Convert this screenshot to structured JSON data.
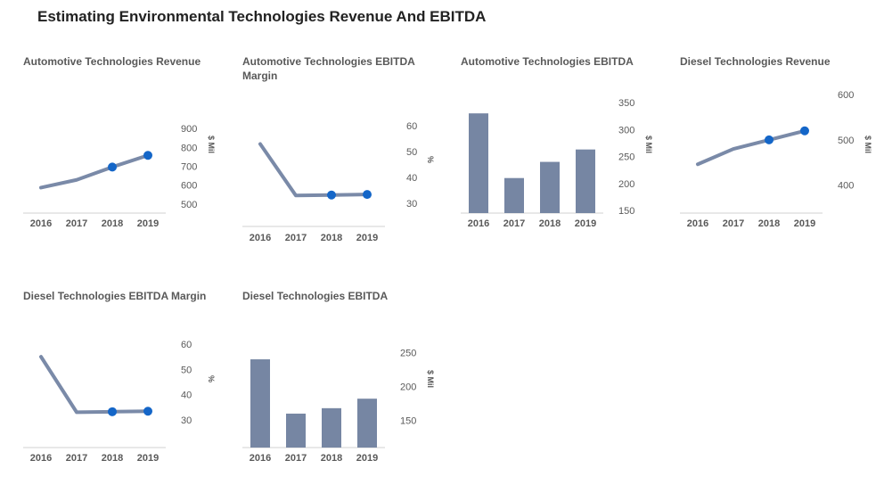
{
  "title": "Estimating Environmental Technologies Revenue And EBITDA",
  "colors": {
    "line": "#7a8aa8",
    "bar": "#7686a3",
    "point": "#1466c8",
    "axis": "#d0d0d0",
    "text": "#595959"
  },
  "chart_data": [
    {
      "type": "line",
      "title": "Automotive Technologies Revenue",
      "unit": "$ Mil",
      "categories": [
        "2016",
        "2017",
        "2018",
        "2019"
      ],
      "values": [
        587,
        628,
        696,
        758
      ],
      "highlight": [
        2,
        3
      ],
      "yticks": [
        500,
        600,
        700,
        800,
        900
      ],
      "ylim": [
        452,
        915
      ]
    },
    {
      "type": "line",
      "title": "Automotive Technologies EBITDA Margin",
      "unit": "%",
      "categories": [
        "2016",
        "2017",
        "2018",
        "2019"
      ],
      "values": [
        53,
        33,
        33.2,
        33.4
      ],
      "highlight": [
        2,
        3
      ],
      "yticks": [
        30,
        40,
        50,
        60
      ],
      "ylim": [
        21,
        67
      ]
    },
    {
      "type": "bar",
      "title": "Automotive Technologies EBITDA",
      "unit": "$ Mil",
      "categories": [
        "2016",
        "2017",
        "2018",
        "2019"
      ],
      "values": [
        330,
        210,
        240,
        263
      ],
      "yticks": [
        150,
        200,
        250,
        300,
        350
      ],
      "ylim": [
        145,
        365
      ]
    },
    {
      "type": "line",
      "title": "Diesel Technologies Revenue",
      "unit": "$ Mil",
      "categories": [
        "2016",
        "2017",
        "2018",
        "2019"
      ],
      "values": [
        446,
        480,
        500,
        520
      ],
      "highlight": [
        2,
        3
      ],
      "yticks": [
        400,
        500,
        600
      ],
      "ylim": [
        338,
        630
      ]
    },
    {
      "type": "line",
      "title": "Diesel Technologies EBITDA Margin",
      "unit": "%",
      "categories": [
        "2016",
        "2017",
        "2018",
        "2019"
      ],
      "values": [
        55,
        33,
        33.2,
        33.4
      ],
      "highlight": [
        2,
        3
      ],
      "yticks": [
        30,
        40,
        50,
        60
      ],
      "ylim": [
        19,
        66
      ]
    },
    {
      "type": "bar",
      "title": "Diesel Technologies EBITDA",
      "unit": "$ Mil",
      "categories": [
        "2016",
        "2017",
        "2018",
        "2019"
      ],
      "values": [
        240,
        160,
        168,
        182
      ],
      "yticks": [
        150,
        200,
        250
      ],
      "ylim": [
        110,
        265
      ]
    }
  ]
}
